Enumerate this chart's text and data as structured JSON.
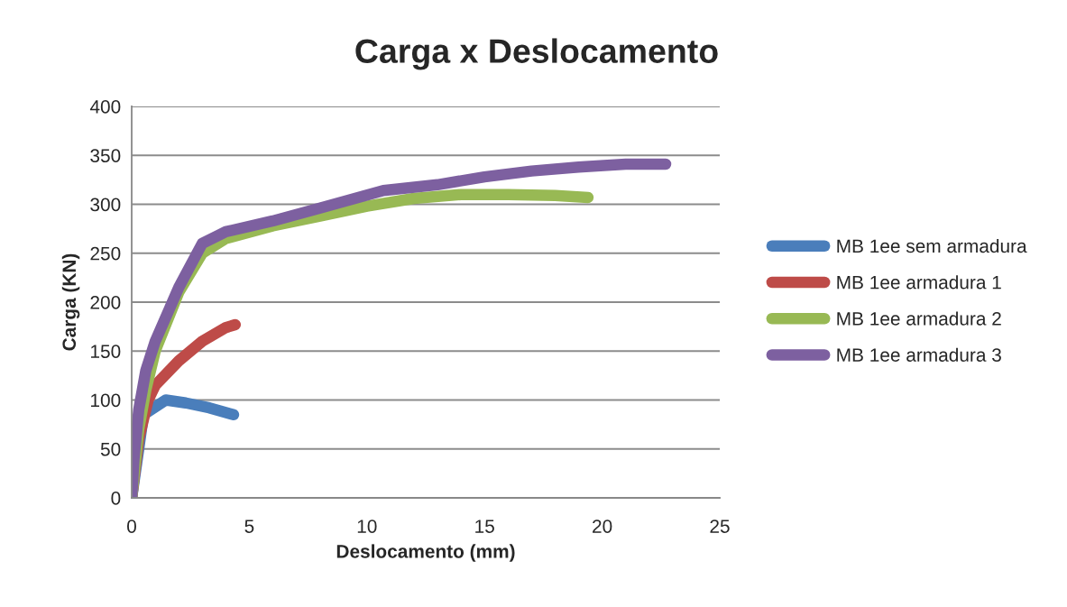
{
  "chart_data": {
    "type": "line",
    "title": "Carga x Deslocamento",
    "xlabel": "Deslocamento (mm)",
    "ylabel": "Carga (KN)",
    "xlim": [
      0,
      25
    ],
    "xticks": [
      0,
      5,
      10,
      15,
      20,
      25
    ],
    "ylim": [
      0,
      400
    ],
    "yticks": [
      0,
      50,
      100,
      150,
      200,
      250,
      300,
      350,
      400
    ],
    "grid": "y",
    "legend": "right",
    "marker": "none",
    "line_style": "solid",
    "series": [
      {
        "name": "MB 1ee sem armadura",
        "color": "#4a7ebb",
        "x": [
          0,
          0.3,
          0.5,
          1.45,
          2.3,
          3.3,
          4.33
        ],
        "values": [
          0,
          50,
          85,
          100,
          97,
          92,
          85
        ]
      },
      {
        "name": "MB 1ee armadura 1",
        "color": "#be4b48",
        "x": [
          0,
          0.3,
          0.7,
          1,
          2,
          3,
          4,
          4.4
        ],
        "values": [
          0,
          60,
          100,
          115,
          140,
          160,
          174,
          177
        ]
      },
      {
        "name": "MB 1ee armadura 2",
        "color": "#98b954",
        "x": [
          0,
          0.3,
          0.6,
          1,
          2,
          3,
          4,
          6,
          8,
          10,
          12,
          14,
          16,
          18,
          19.4
        ],
        "values": [
          0,
          70,
          110,
          150,
          210,
          250,
          265,
          278,
          288,
          298,
          306,
          310,
          310,
          309,
          307
        ]
      },
      {
        "name": "MB 1ee armadura 3",
        "color": "#7d60a0",
        "x": [
          0,
          0.1,
          0.3,
          0.6,
          1,
          2,
          3,
          4,
          6,
          8,
          10.7,
          13,
          15,
          17,
          19,
          21,
          22.7
        ],
        "values": [
          0,
          40,
          90,
          130,
          160,
          215,
          260,
          272,
          283,
          296,
          314,
          320,
          328,
          334,
          338,
          341,
          341
        ]
      }
    ]
  }
}
